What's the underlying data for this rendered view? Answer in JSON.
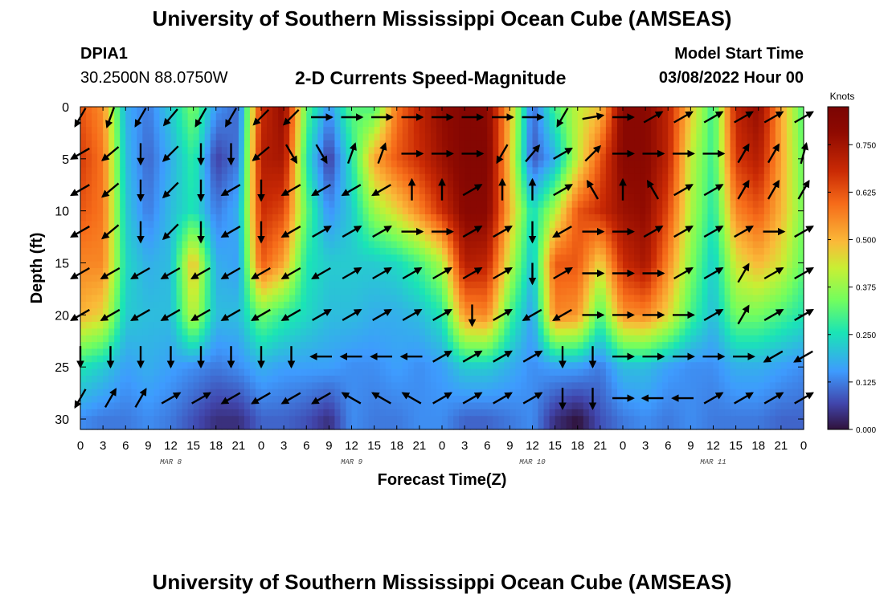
{
  "header": {
    "title": "University of Southern Mississippi Ocean Cube (AMSEAS)",
    "station_id": "DPIA1",
    "station_coords": "30.2500N  88.0750W",
    "subtitle": "2-D Currents Speed-Magnitude",
    "model_start_label": "Model Start Time",
    "model_start_value": "03/08/2022 Hour 00"
  },
  "footer": {
    "title": "University of Southern Mississippi Ocean Cube (AMSEAS)"
  },
  "chart_data": {
    "type": "heatmap",
    "title": "2-D Currents Speed-Magnitude",
    "xlabel": "Forecast Time(Z)",
    "ylabel": "Depth (ft)",
    "x_range_hours": [
      0,
      96
    ],
    "y_range_ft": [
      0,
      31
    ],
    "x_tick_hours": [
      0,
      3,
      6,
      9,
      12,
      15,
      18,
      21,
      24,
      27,
      30,
      33,
      36,
      39,
      42,
      45,
      48,
      51,
      54,
      57,
      60,
      63,
      66,
      69,
      72,
      75,
      78,
      81,
      84,
      87,
      90,
      93,
      96
    ],
    "x_tick_labels": [
      "0",
      "3",
      "6",
      "9",
      "12",
      "15",
      "18",
      "21",
      "0",
      "3",
      "6",
      "9",
      "12",
      "15",
      "18",
      "21",
      "0",
      "3",
      "6",
      "9",
      "12",
      "15",
      "18",
      "21",
      "0",
      "3",
      "6",
      "9",
      "12",
      "15",
      "18",
      "21",
      "0"
    ],
    "y_ticks": [
      0,
      5,
      10,
      15,
      20,
      25,
      30
    ],
    "day_labels": [
      {
        "label": "MAR 8",
        "hour": 12
      },
      {
        "label": "MAR 9",
        "hour": 36
      },
      {
        "label": "MAR 10",
        "hour": 60
      },
      {
        "label": "MAR 11",
        "hour": 84
      }
    ],
    "colorbar": {
      "title": "Knots",
      "min": 0.0,
      "max": 0.85,
      "ticks": [
        0.0,
        0.125,
        0.25,
        0.375,
        0.5,
        0.625,
        0.75
      ],
      "tick_labels": [
        "0.000",
        "0.125",
        "0.250",
        "0.375",
        "0.500",
        "0.625",
        "0.750"
      ]
    },
    "time_hours": [
      0,
      3,
      6,
      9,
      12,
      15,
      18,
      21,
      24,
      27,
      30,
      33,
      36,
      39,
      42,
      45,
      48,
      51,
      54,
      57,
      60,
      63,
      66,
      69,
      72,
      75,
      78,
      81,
      84,
      87,
      90,
      93,
      96
    ],
    "depth_ft": [
      0,
      5,
      10,
      15,
      20,
      25,
      30
    ],
    "speed_knots": [
      [
        0.62,
        0.55,
        0.18,
        0.12,
        0.22,
        0.35,
        0.15,
        0.1,
        0.68,
        0.78,
        0.32,
        0.15,
        0.32,
        0.3,
        0.58,
        0.7,
        0.78,
        0.82,
        0.8,
        0.5,
        0.1,
        0.3,
        0.42,
        0.48,
        0.8,
        0.8,
        0.7,
        0.48,
        0.28,
        0.7,
        0.78,
        0.52,
        0.3
      ],
      [
        0.66,
        0.58,
        0.2,
        0.1,
        0.18,
        0.28,
        0.06,
        0.12,
        0.72,
        0.74,
        0.26,
        0.05,
        0.26,
        0.52,
        0.62,
        0.68,
        0.76,
        0.82,
        0.82,
        0.48,
        0.08,
        0.18,
        0.42,
        0.62,
        0.8,
        0.8,
        0.7,
        0.42,
        0.28,
        0.66,
        0.72,
        0.52,
        0.32
      ],
      [
        0.62,
        0.58,
        0.22,
        0.12,
        0.2,
        0.26,
        0.12,
        0.18,
        0.68,
        0.64,
        0.32,
        0.14,
        0.22,
        0.38,
        0.46,
        0.56,
        0.68,
        0.8,
        0.8,
        0.5,
        0.24,
        0.4,
        0.62,
        0.68,
        0.76,
        0.78,
        0.64,
        0.4,
        0.26,
        0.56,
        0.62,
        0.5,
        0.34
      ],
      [
        0.56,
        0.56,
        0.24,
        0.18,
        0.2,
        0.5,
        0.18,
        0.16,
        0.62,
        0.52,
        0.26,
        0.22,
        0.22,
        0.22,
        0.24,
        0.3,
        0.4,
        0.72,
        0.7,
        0.42,
        0.2,
        0.62,
        0.62,
        0.46,
        0.68,
        0.74,
        0.56,
        0.36,
        0.22,
        0.44,
        0.5,
        0.44,
        0.32
      ],
      [
        0.5,
        0.46,
        0.22,
        0.2,
        0.2,
        0.42,
        0.2,
        0.2,
        0.34,
        0.28,
        0.24,
        0.2,
        0.2,
        0.18,
        0.18,
        0.2,
        0.26,
        0.54,
        0.56,
        0.3,
        0.16,
        0.56,
        0.54,
        0.3,
        0.54,
        0.56,
        0.46,
        0.3,
        0.2,
        0.34,
        0.34,
        0.3,
        0.26
      ],
      [
        0.26,
        0.22,
        0.16,
        0.18,
        0.16,
        0.14,
        0.12,
        0.14,
        0.18,
        0.16,
        0.16,
        0.16,
        0.14,
        0.14,
        0.16,
        0.14,
        0.16,
        0.22,
        0.22,
        0.18,
        0.14,
        0.16,
        0.16,
        0.12,
        0.2,
        0.2,
        0.16,
        0.14,
        0.14,
        0.18,
        0.18,
        0.16,
        0.14
      ],
      [
        0.14,
        0.12,
        0.12,
        0.14,
        0.12,
        0.08,
        0.04,
        0.04,
        0.1,
        0.1,
        0.08,
        0.04,
        0.14,
        0.12,
        0.12,
        0.14,
        0.14,
        0.1,
        0.1,
        0.12,
        0.14,
        0.04,
        0.0,
        0.08,
        0.12,
        0.14,
        0.12,
        0.14,
        0.12,
        0.12,
        0.12,
        0.1,
        0.1
      ]
    ],
    "vector_time_hours": [
      0,
      4,
      8,
      12,
      16,
      20,
      24,
      28,
      32,
      36,
      40,
      44,
      48,
      52,
      56,
      60,
      64,
      68,
      72,
      76,
      80,
      84,
      88,
      92,
      96
    ],
    "vector_depth_ft": [
      1,
      4.5,
      8,
      12,
      16,
      20,
      24,
      28
    ],
    "vector_angle_deg": [
      [
        210,
        200,
        210,
        220,
        210,
        210,
        225,
        225,
        90,
        90,
        90,
        90,
        90,
        90,
        90,
        90,
        210,
        80,
        90,
        60,
        60,
        60,
        60,
        60,
        60
      ],
      [
        240,
        230,
        180,
        225,
        180,
        180,
        230,
        150,
        150,
        20,
        20,
        90,
        90,
        90,
        210,
        40,
        60,
        45,
        90,
        90,
        90,
        90,
        30,
        30,
        15
      ],
      [
        240,
        230,
        180,
        225,
        180,
        240,
        180,
        240,
        240,
        240,
        240,
        0,
        0,
        60,
        0,
        0,
        60,
        330,
        0,
        330,
        60,
        60,
        30,
        30,
        30
      ],
      [
        240,
        230,
        180,
        225,
        180,
        240,
        180,
        240,
        60,
        60,
        60,
        90,
        90,
        60,
        60,
        180,
        240,
        90,
        90,
        60,
        60,
        60,
        60,
        90,
        60
      ],
      [
        240,
        240,
        240,
        240,
        240,
        240,
        240,
        240,
        240,
        60,
        60,
        60,
        60,
        60,
        60,
        180,
        60,
        90,
        90,
        90,
        60,
        60,
        30,
        60,
        60
      ],
      [
        240,
        240,
        240,
        240,
        240,
        240,
        240,
        240,
        60,
        60,
        60,
        60,
        60,
        180,
        60,
        240,
        240,
        90,
        90,
        90,
        90,
        60,
        30,
        60,
        60
      ],
      [
        180,
        180,
        180,
        180,
        180,
        180,
        180,
        180,
        270,
        270,
        270,
        270,
        60,
        60,
        60,
        60,
        180,
        180,
        90,
        90,
        90,
        90,
        90,
        240,
        240
      ],
      [
        210,
        30,
        30,
        60,
        60,
        240,
        240,
        240,
        240,
        300,
        300,
        300,
        60,
        60,
        60,
        60,
        180,
        180,
        90,
        270,
        270,
        60,
        60,
        60,
        60
      ]
    ]
  }
}
